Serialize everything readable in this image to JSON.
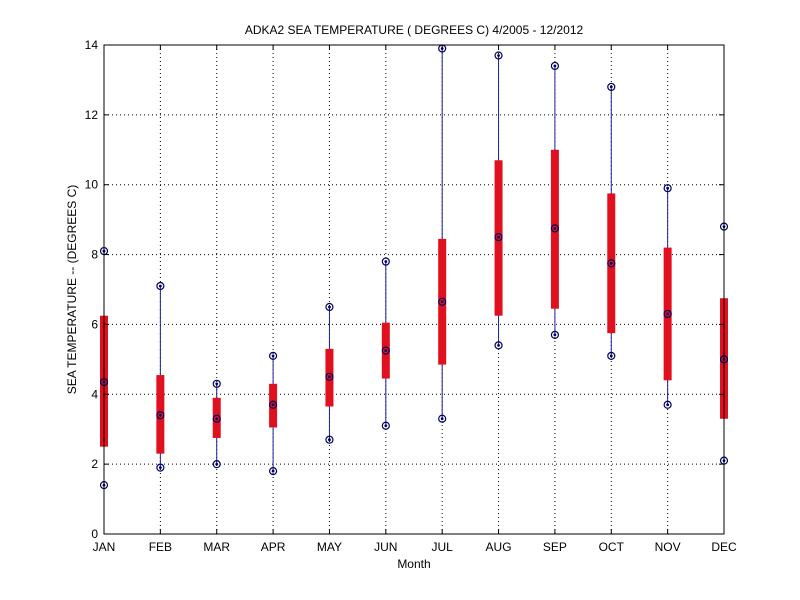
{
  "chart_data": {
    "type": "box",
    "title": "ADKA2  SEA TEMPERATURE ( DEGREES C) 4/2005 - 12/2012",
    "xlabel": "Month",
    "ylabel": "SEA TEMPERATURE -- (DEGREES C)",
    "categories": [
      "JAN",
      "FEB",
      "MAR",
      "APR",
      "MAY",
      "JUN",
      "JUL",
      "AUG",
      "SEP",
      "OCT",
      "NOV",
      "DEC"
    ],
    "ylim": [
      0,
      14
    ],
    "yticks": [
      0,
      2,
      4,
      6,
      8,
      10,
      12,
      14
    ],
    "grid": true,
    "series": [
      {
        "min": [
          1.4,
          1.9,
          2.0,
          1.8,
          2.7,
          3.1,
          3.3,
          5.4,
          5.7,
          5.1,
          3.7,
          2.1
        ],
        "q1": [
          2.5,
          2.3,
          2.75,
          3.05,
          3.65,
          4.45,
          4.85,
          6.25,
          6.45,
          5.75,
          4.4,
          3.3
        ],
        "median": [
          4.35,
          3.4,
          3.3,
          3.7,
          4.5,
          5.25,
          6.65,
          8.5,
          8.75,
          7.75,
          6.3,
          5.0
        ],
        "q3": [
          6.25,
          4.55,
          3.9,
          4.3,
          5.3,
          6.05,
          8.45,
          10.7,
          11.0,
          9.75,
          8.2,
          6.75
        ],
        "max": [
          8.1,
          7.1,
          4.3,
          5.1,
          6.5,
          7.8,
          13.9,
          13.7,
          13.4,
          12.8,
          9.9,
          8.8
        ]
      }
    ],
    "colors": {
      "box": "#e0101e",
      "whisker": "#2020a0",
      "marker": "#000060",
      "grid": "#000000",
      "axis": "#000000"
    }
  }
}
